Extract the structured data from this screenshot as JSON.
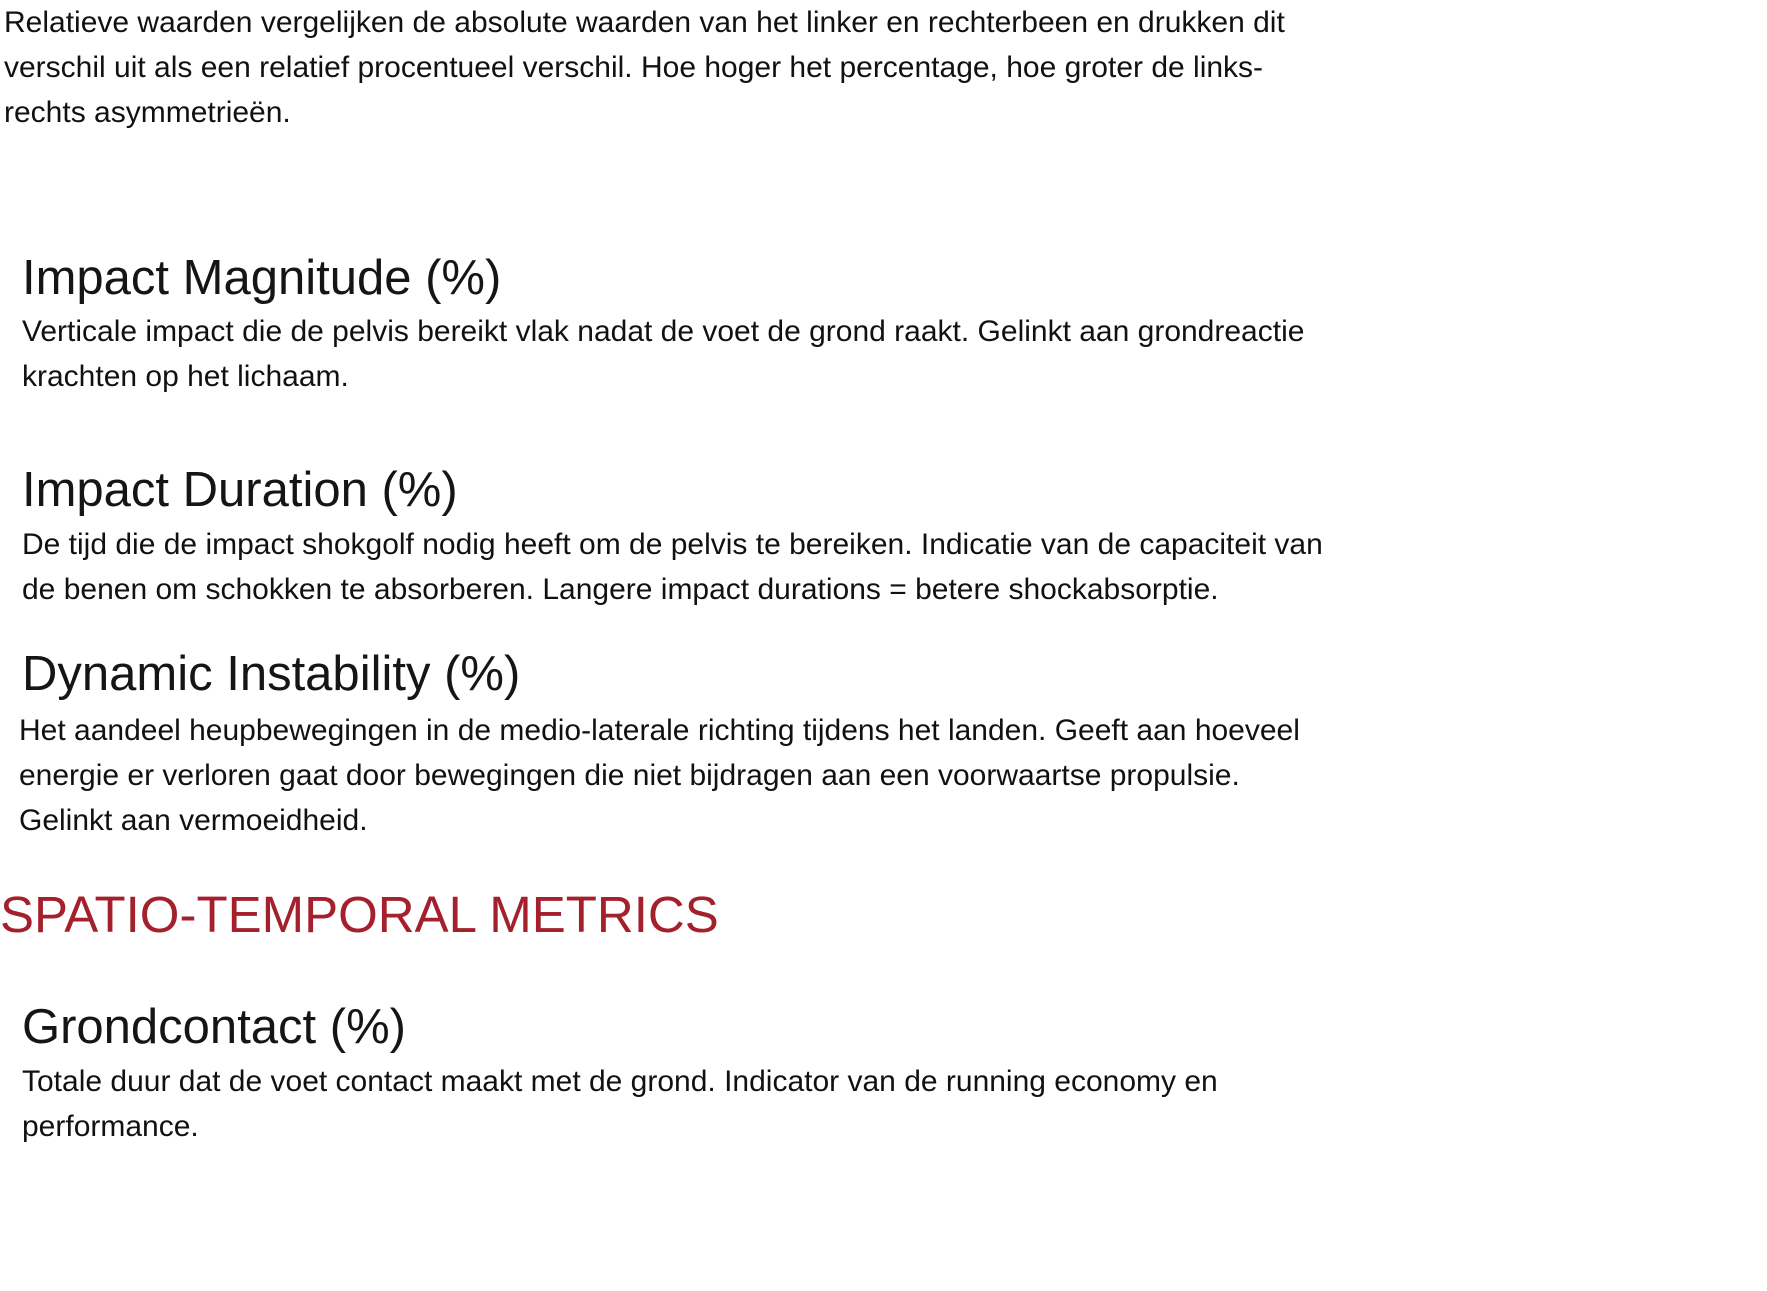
{
  "colors": {
    "text": "#111111",
    "section_title": "#a3202c"
  },
  "intro": {
    "text": "Relatieve waarden vergelijken de absolute waarden van het linker en rechterbeen en drukken dit\nverschil uit als een relatief procentueel verschil. Hoe hoger het percentage, hoe groter de links-\nrechts asymmetrieën."
  },
  "metrics": [
    {
      "title": "Impact Magnitude (%)",
      "description": "Verticale impact die de pelvis bereikt vlak nadat de voet de grond raakt. Gelinkt aan grondreactie\nkrachten op het lichaam."
    },
    {
      "title": "Impact Duration (%)",
      "description": "De tijd die de impact shokgolf nodig heeft om de pelvis te bereiken. Indicatie van de capaciteit van\nde benen om schokken te absorberen. Langere impact durations = betere shockabsorptie."
    },
    {
      "title": "Dynamic Instability (%)",
      "description": "Het aandeel heupbewegingen in de medio-laterale richting tijdens het landen. Geeft aan hoeveel\nenergie er verloren gaat door bewegingen die niet bijdragen aan een voorwaartse propulsie.\nGelinkt aan vermoeidheid."
    }
  ],
  "section": {
    "title": "SPATIO-TEMPORAL METRICS"
  },
  "spatio_metrics": [
    {
      "title": "Grondcontact (%)",
      "description": "Totale duur dat de voet contact maakt met de grond. Indicator van de running economy en\nperformance."
    }
  ]
}
